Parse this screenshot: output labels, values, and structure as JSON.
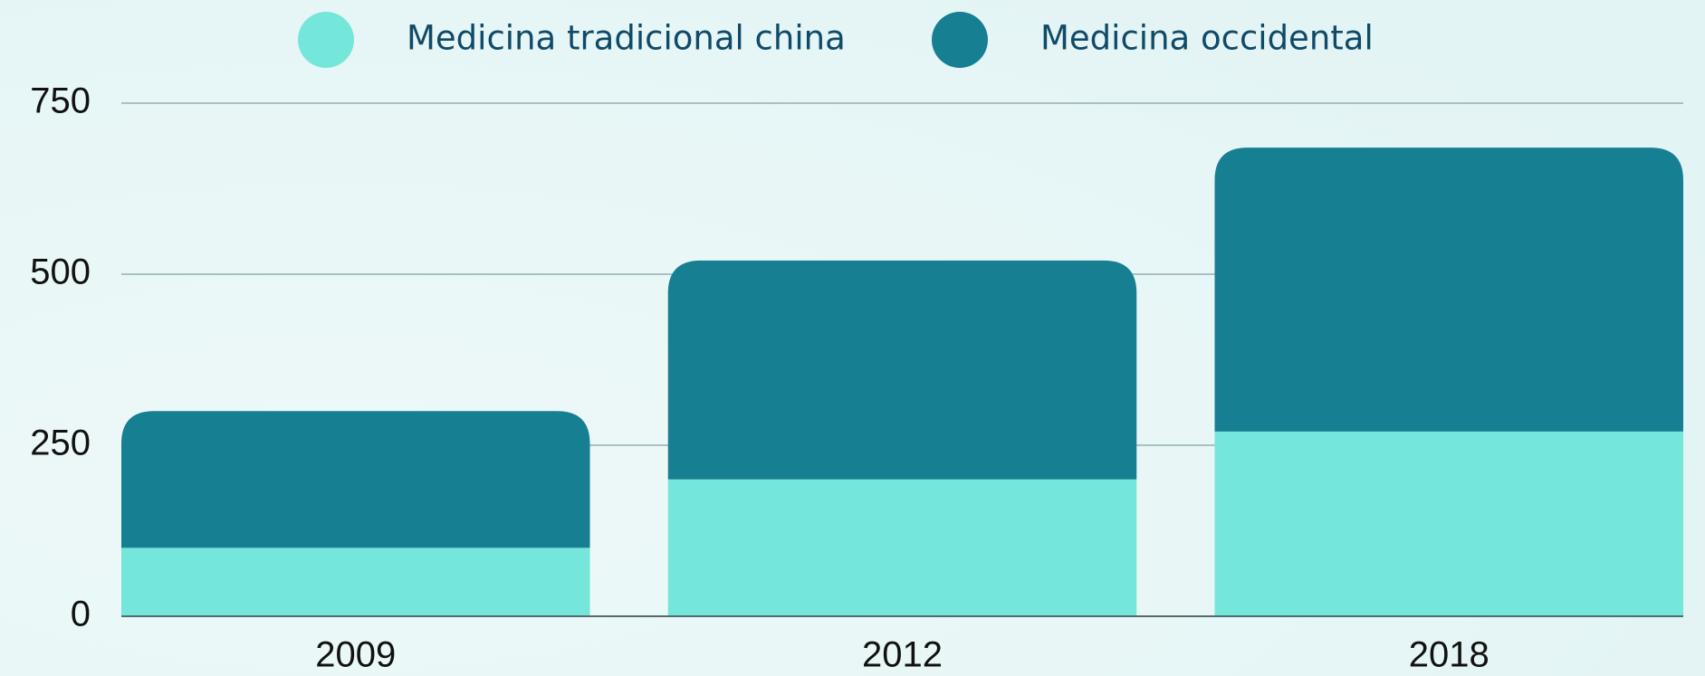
{
  "chart_data": {
    "type": "stacked-bar",
    "categories": [
      "2009",
      "2012",
      "2018"
    ],
    "series": [
      {
        "name": "Medicina tradicional china",
        "color": "#75e6da",
        "values": [
          100,
          200,
          270
        ]
      },
      {
        "name": "Medicina occidental",
        "color": "#167f92",
        "values": [
          200,
          320,
          415
        ]
      }
    ],
    "ylim": [
      0,
      750
    ],
    "yticks": [
      0,
      250,
      500,
      750
    ],
    "grid": true,
    "legend": "top"
  }
}
